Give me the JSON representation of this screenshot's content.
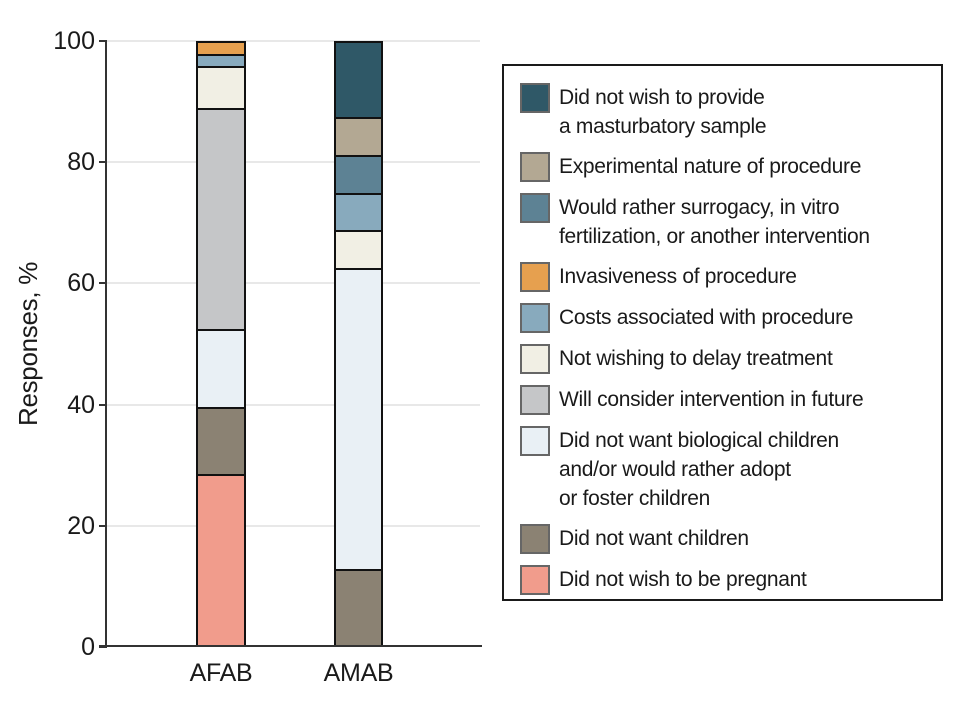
{
  "chart_data": {
    "type": "bar",
    "stacked": true,
    "title": "",
    "xlabel": "",
    "ylabel": "Responses, %",
    "ylim": [
      0,
      100
    ],
    "yticks": [
      0,
      20,
      40,
      60,
      80,
      100
    ],
    "grid": "horizontal",
    "legend_position": "right",
    "categories": [
      "AFAB",
      "AMAB"
    ],
    "series": [
      {
        "name": "Did not wish to be pregnant",
        "color": "#f19c8c",
        "values": [
          28.3,
          0
        ]
      },
      {
        "name": "Did not want children",
        "color": "#8b8273",
        "values": [
          11.0,
          12.5
        ]
      },
      {
        "name": "Did not want biological children and/or would rather adopt or foster children",
        "color": "#e9f0f5",
        "values": [
          13.0,
          50.0
        ]
      },
      {
        "name": "Will consider intervention in future",
        "color": "#c5c6c8",
        "values": [
          36.7,
          0
        ]
      },
      {
        "name": "Not wishing to delay treatment",
        "color": "#f1efe4",
        "values": [
          7.0,
          6.25
        ]
      },
      {
        "name": "Costs associated with procedure",
        "color": "#88aabd",
        "values": [
          2.0,
          6.25
        ]
      },
      {
        "name": "Invasiveness of procedure",
        "color": "#e6a04f",
        "values": [
          2.0,
          0
        ]
      },
      {
        "name": "Would rather surrogacy, in vitro fertilization, or another intervention",
        "color": "#5d8294",
        "values": [
          0,
          6.25
        ]
      },
      {
        "name": "Experimental nature of procedure",
        "color": "#b3a893",
        "values": [
          0,
          6.25
        ]
      },
      {
        "name": "Did not wish to provide a masturbatory sample",
        "color": "#2f5867",
        "values": [
          0,
          12.5
        ]
      }
    ]
  },
  "legend": {
    "items": [
      {
        "label": "Did not wish to provide\na masturbatory sample",
        "color": "#2f5867"
      },
      {
        "label": "Experimental nature of procedure",
        "color": "#b3a893"
      },
      {
        "label": "Would rather surrogacy, in vitro\nfertilization, or another intervention",
        "color": "#5d8294"
      },
      {
        "label": "Invasiveness of procedure",
        "color": "#e6a04f"
      },
      {
        "label": "Costs associated with procedure",
        "color": "#88aabd"
      },
      {
        "label": "Not wishing to delay treatment",
        "color": "#f1efe4"
      },
      {
        "label": "Will consider intervention in future",
        "color": "#c5c6c8"
      },
      {
        "label": "Did not want biological children\nand/or would rather adopt\nor foster children",
        "color": "#e9f0f5"
      },
      {
        "label": "Did not want children",
        "color": "#8b8273"
      },
      {
        "label": "Did not wish to be pregnant",
        "color": "#f19c8c"
      }
    ]
  },
  "colors": {
    "axis": "#333333",
    "grid": "#e8e8e8",
    "bar_border": "#111111",
    "text": "#1a1a1a",
    "background": "#ffffff"
  }
}
